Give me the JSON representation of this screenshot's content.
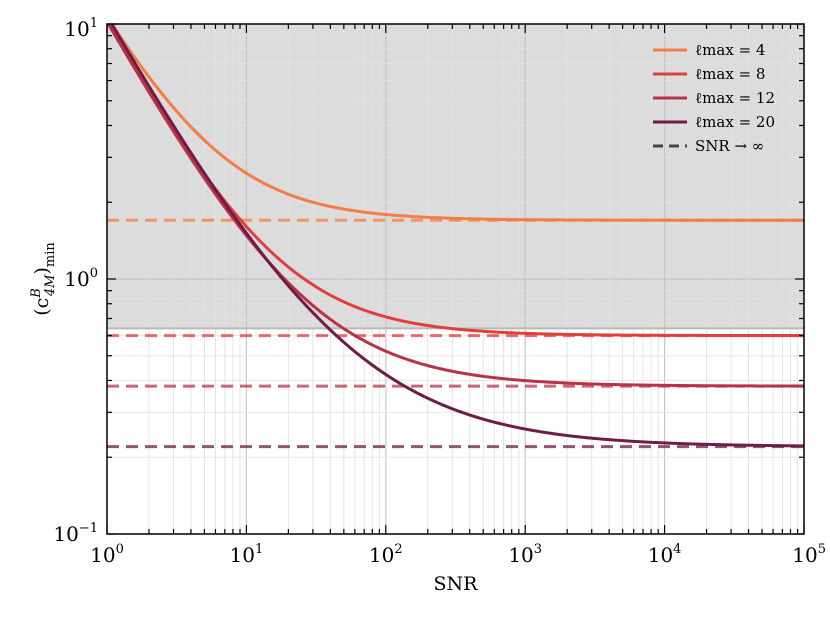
{
  "chart_data": {
    "type": "line",
    "title": "",
    "xlabel": "SNR",
    "ylabel": "(c_4M^B)_min",
    "ylabel_parts": {
      "base": "(c",
      "sup": "B",
      "sub": "4M",
      "close": ")",
      "subscript": "min"
    },
    "xscale": "log",
    "yscale": "log",
    "xlim": [
      1,
      100000
    ],
    "ylim": [
      0.1,
      10
    ],
    "grid": true,
    "legend_placement": "top-right",
    "x_ticks": [
      {
        "base": "10",
        "exp": "0"
      },
      {
        "base": "10",
        "exp": "1"
      },
      {
        "base": "10",
        "exp": "2"
      },
      {
        "base": "10",
        "exp": "3"
      },
      {
        "base": "10",
        "exp": "4"
      },
      {
        "base": "10",
        "exp": "5"
      }
    ],
    "y_ticks": [
      {
        "base": "10",
        "exp": "−1"
      },
      {
        "base": "10",
        "exp": "0"
      },
      {
        "base": "10",
        "exp": "1"
      }
    ],
    "shaded_region": {
      "y_from": 0.64,
      "y_to": 10,
      "color": "#dcdcdc",
      "edge_color": "#b8b8b8"
    },
    "series": [
      {
        "label": "ℓmax = 4",
        "color": "#f47d45",
        "asymptote": 1.7,
        "k": 9.0,
        "n": 1.0
      },
      {
        "label": "ℓmax = 8",
        "color": "#e0403b",
        "asymptote": 0.6,
        "k": 9.5,
        "n": 0.95
      },
      {
        "label": "ℓmax = 12",
        "color": "#b93348",
        "asymptote": 0.38,
        "k": 9.5,
        "n": 0.85
      },
      {
        "label": "ℓmax = 20",
        "color": "#6e1d46",
        "asymptote": 0.22,
        "k": 9.7,
        "n": 0.69
      }
    ],
    "asymptote_legend_label": "SNR → ∞",
    "asymptote_legend_color": "#444444"
  }
}
